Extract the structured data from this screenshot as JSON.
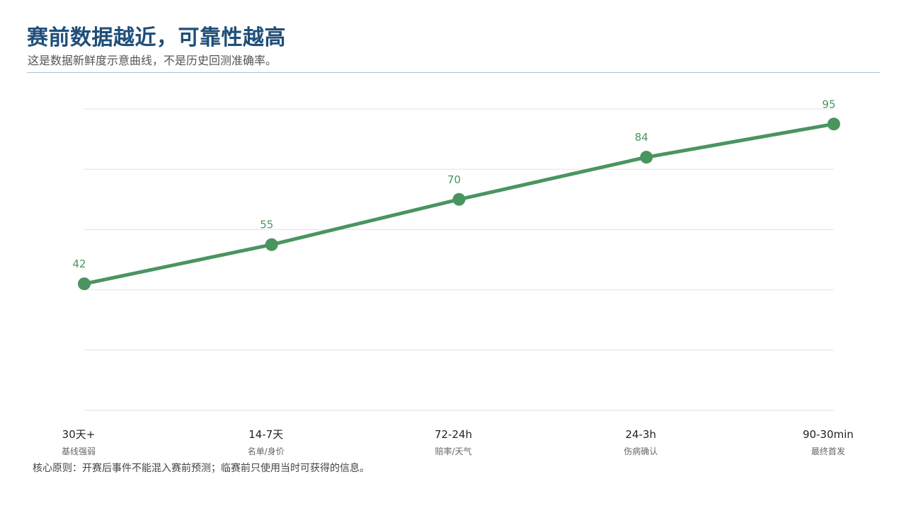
{
  "header": {
    "title": "赛前数据越近，可靠性越高",
    "subtitle": "这是数据新鲜度示意曲线，不是历史回测准确率。"
  },
  "footnote": "核心原则：开赛后事件不能混入赛前预测；临赛前只使用当时可获得的信息。",
  "colors": {
    "title": "#1f4e79",
    "line": "#4a9460",
    "grid": "#e2e2e2",
    "label": "#4a9460"
  },
  "chart_data": {
    "type": "line",
    "categories": [
      "30天+",
      "14-7天",
      "72-24h",
      "24-3h",
      "90-30min"
    ],
    "subcategories": [
      "基线强弱",
      "名单/身价",
      "赔率/天气",
      "伤病确认",
      "最终首发"
    ],
    "series": [
      {
        "values": [
          42,
          55,
          70,
          84,
          95
        ]
      }
    ],
    "ylim": [
      0,
      100
    ],
    "grid": true,
    "data_labels": true
  }
}
